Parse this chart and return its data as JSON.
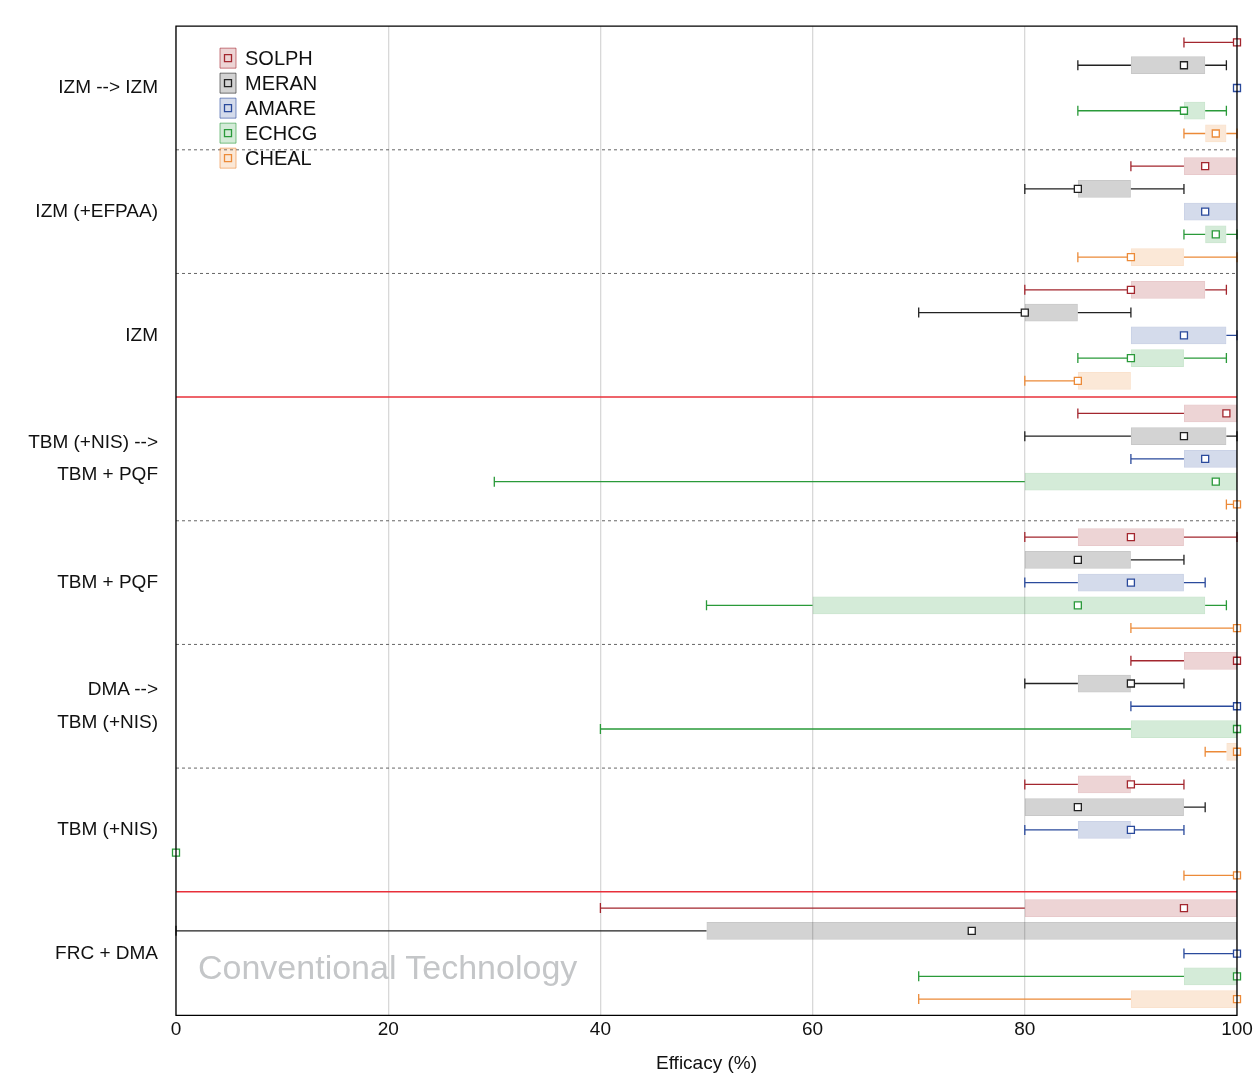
{
  "chart_data": {
    "type": "box",
    "orientation": "horizontal",
    "categories": [
      "IZM --> IZM",
      "IZM (+EFPAA)",
      "IZM",
      "TBM (+NIS) -->\nTBM + PQF",
      "TBM + PQF",
      "DMA -->\nTBM (+NIS)",
      "TBM (+NIS)",
      "FRC + DMA"
    ],
    "xlabel": "Efficacy (%)",
    "xlim": [
      0,
      100
    ],
    "xticks": [
      0,
      20,
      40,
      60,
      80,
      100
    ],
    "grid": "x",
    "legend": "top left",
    "marker": "square",
    "annotations": [
      "Conventional Technology"
    ],
    "series": [
      {
        "name": "SOLPH",
        "color": "#a3262e",
        "boxes": [
          {
            "low": 95,
            "q1": 100,
            "median": 100,
            "q3": 100,
            "high": 100
          },
          {
            "low": 90,
            "q1": 95,
            "median": 97,
            "q3": 100,
            "high": 100
          },
          {
            "low": 80,
            "q1": 90,
            "median": 90,
            "q3": 97,
            "high": 99
          },
          {
            "low": 85,
            "q1": 95,
            "median": 99,
            "q3": 100,
            "high": 100
          },
          {
            "low": 80,
            "q1": 85,
            "median": 90,
            "q3": 95,
            "high": 100
          },
          {
            "low": 90,
            "q1": 95,
            "median": 100,
            "q3": 100,
            "high": 100
          },
          {
            "low": 80,
            "q1": 85,
            "median": 90,
            "q3": 90,
            "high": 95
          },
          {
            "low": 40,
            "q1": 80,
            "median": 95,
            "q3": 100,
            "high": 100
          }
        ]
      },
      {
        "name": "MERAN",
        "color": "#222222",
        "boxes": [
          {
            "low": 85,
            "q1": 90,
            "median": 95,
            "q3": 97,
            "high": 99
          },
          {
            "low": 80,
            "q1": 85,
            "median": 85,
            "q3": 90,
            "high": 95
          },
          {
            "low": 70,
            "q1": 80,
            "median": 80,
            "q3": 85,
            "high": 90
          },
          {
            "low": 80,
            "q1": 90,
            "median": 95,
            "q3": 99,
            "high": 100
          },
          {
            "low": 80,
            "q1": 80,
            "median": 85,
            "q3": 90,
            "high": 95
          },
          {
            "low": 80,
            "q1": 85,
            "median": 90,
            "q3": 90,
            "high": 95
          },
          {
            "low": 80,
            "q1": 80,
            "median": 85,
            "q3": 95,
            "high": 97
          },
          {
            "low": 0,
            "q1": 50,
            "median": 75,
            "q3": 100,
            "high": 100
          }
        ]
      },
      {
        "name": "AMARE",
        "color": "#2a4a9c",
        "boxes": [
          {
            "low": 100,
            "q1": 100,
            "median": 100,
            "q3": 100,
            "high": 100
          },
          {
            "low": 95,
            "q1": 95,
            "median": 97,
            "q3": 100,
            "high": 100
          },
          {
            "low": 90,
            "q1": 90,
            "median": 95,
            "q3": 99,
            "high": 100
          },
          {
            "low": 90,
            "q1": 95,
            "median": 97,
            "q3": 100,
            "high": 100
          },
          {
            "low": 80,
            "q1": 85,
            "median": 90,
            "q3": 95,
            "high": 97
          },
          {
            "low": 90,
            "q1": 100,
            "median": 100,
            "q3": 100,
            "high": 100
          },
          {
            "low": 80,
            "q1": 85,
            "median": 90,
            "q3": 90,
            "high": 95
          },
          {
            "low": 95,
            "q1": 100,
            "median": 100,
            "q3": 100,
            "high": 100
          }
        ]
      },
      {
        "name": "ECHCG",
        "color": "#2a9a3a",
        "boxes": [
          {
            "low": 85,
            "q1": 95,
            "median": 95,
            "q3": 97,
            "high": 99
          },
          {
            "low": 95,
            "q1": 97,
            "median": 98,
            "q3": 99,
            "high": 100
          },
          {
            "low": 85,
            "q1": 90,
            "median": 90,
            "q3": 95,
            "high": 99
          },
          {
            "low": 30,
            "q1": 80,
            "median": 98,
            "q3": 100,
            "high": 100
          },
          {
            "low": 50,
            "q1": 60,
            "median": 85,
            "q3": 97,
            "high": 99
          },
          {
            "low": 40,
            "q1": 90,
            "median": 100,
            "q3": 100,
            "high": 100
          },
          {
            "low": 0,
            "q1": 0,
            "median": 0,
            "q3": 0,
            "high": 0
          },
          {
            "low": 70,
            "q1": 95,
            "median": 100,
            "q3": 100,
            "high": 100
          }
        ]
      },
      {
        "name": "CHEAL",
        "color": "#ec8a38",
        "boxes": [
          {
            "low": 95,
            "q1": 97,
            "median": 98,
            "q3": 99,
            "high": 100
          },
          {
            "low": 85,
            "q1": 90,
            "median": 90,
            "q3": 95,
            "high": 100
          },
          {
            "low": 80,
            "q1": 85,
            "median": 85,
            "q3": 90,
            "high": 90
          },
          {
            "low": 99,
            "q1": 100,
            "median": 100,
            "q3": 100,
            "high": 100
          },
          {
            "low": 90,
            "q1": 100,
            "median": 100,
            "q3": 100,
            "high": 100
          },
          {
            "low": 97,
            "q1": 99,
            "median": 100,
            "q3": 100,
            "high": 100
          },
          {
            "low": 95,
            "q1": 100,
            "median": 100,
            "q3": 100,
            "high": 100
          },
          {
            "low": 70,
            "q1": 90,
            "median": 100,
            "q3": 100,
            "high": 100
          }
        ]
      }
    ]
  }
}
